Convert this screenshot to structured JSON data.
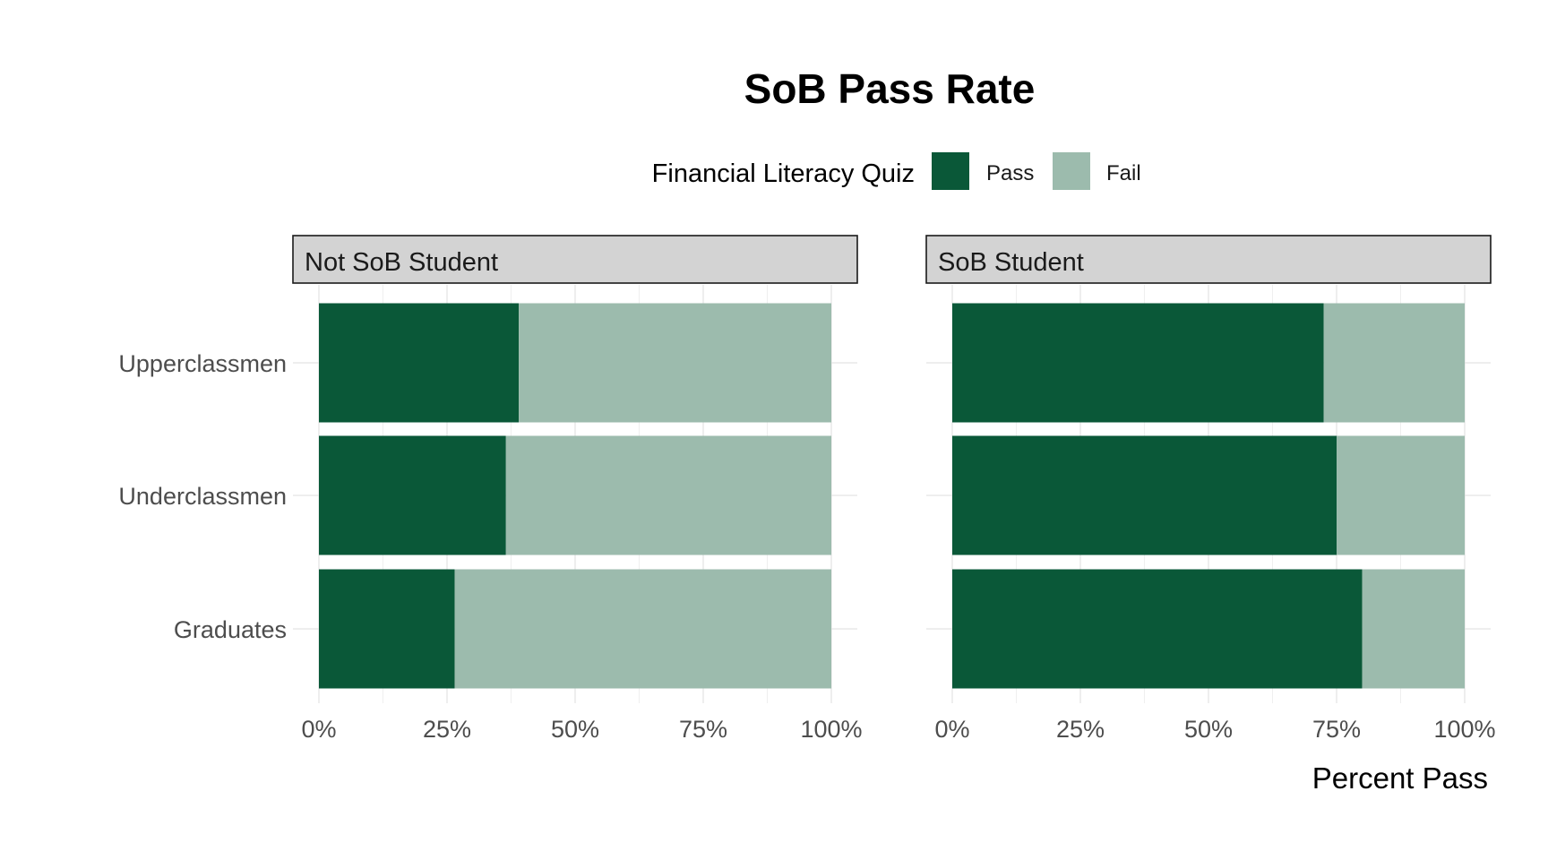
{
  "chart_data": {
    "type": "bar",
    "orientation": "horizontal",
    "stacked": "percent",
    "title": "SoB Pass Rate",
    "xlabel": "Percent Pass",
    "ylabel": "",
    "xlim": [
      0,
      1
    ],
    "x_ticks": [
      "0%",
      "25%",
      "50%",
      "75%",
      "100%"
    ],
    "legend": {
      "title": "Financial Literacy Quiz",
      "position": "top",
      "items": [
        {
          "label": "Pass",
          "color": "#0a5838"
        },
        {
          "label": "Fail",
          "color": "#9cbbad"
        }
      ]
    },
    "categories": [
      "Upperclassmen",
      "Underclassmen",
      "Graduates"
    ],
    "grid": true,
    "facets": [
      {
        "label": "Not SoB Student",
        "series": [
          {
            "name": "Pass",
            "values": [
              0.39,
              0.365,
              0.265
            ]
          },
          {
            "name": "Fail",
            "values": [
              0.61,
              0.635,
              0.735
            ]
          }
        ]
      },
      {
        "label": "SoB Student",
        "series": [
          {
            "name": "Pass",
            "values": [
              0.725,
              0.75,
              0.8
            ]
          },
          {
            "name": "Fail",
            "values": [
              0.275,
              0.25,
              0.2
            ]
          }
        ]
      }
    ]
  }
}
